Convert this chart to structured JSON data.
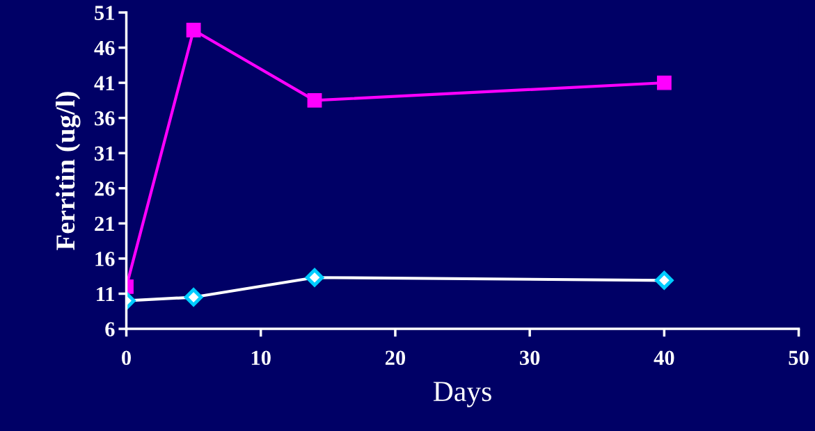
{
  "chart_data": {
    "type": "line",
    "xlabel": "Days",
    "ylabel": "Ferritin (ug/l)",
    "x": [
      0,
      5,
      14,
      40
    ],
    "series": [
      {
        "color": "#ff00ff",
        "marker": "square",
        "values": [
          12,
          48.5,
          38.5,
          41
        ]
      },
      {
        "color": "#ffffff",
        "marker": "diamond",
        "values": [
          10,
          10.5,
          13.3,
          12.9
        ]
      }
    ],
    "xlim": [
      0,
      50
    ],
    "xticks": [
      0,
      10,
      20,
      30,
      40,
      50
    ],
    "ylim": [
      6,
      51
    ],
    "yticks": [
      6,
      11,
      16,
      21,
      26,
      31,
      36,
      41,
      46,
      51
    ],
    "grid": false,
    "legend": false,
    "line_style": "solid"
  }
}
